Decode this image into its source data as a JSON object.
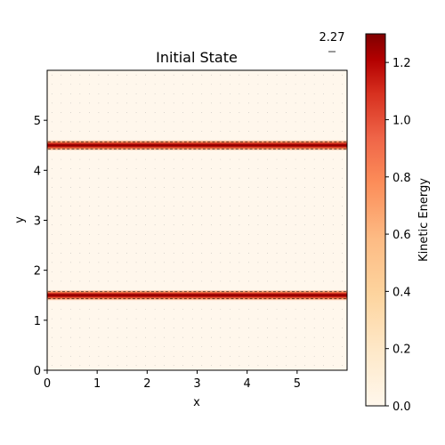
{
  "chart_data": {
    "type": "heatmap",
    "title": "Initial State",
    "xlabel": "x",
    "ylabel": "y",
    "xlim": [
      0,
      6
    ],
    "ylim": [
      0,
      6
    ],
    "xticks": [
      0,
      1,
      2,
      3,
      4,
      5
    ],
    "yticks": [
      0,
      1,
      2,
      3,
      4,
      5
    ],
    "colorbar": {
      "label": "Kinetic Energy",
      "colormap": "OrRd",
      "range": [
        0,
        1.3
      ],
      "ticks": [
        "0.0",
        "0.2",
        "0.4",
        "0.6",
        "0.8",
        "1.0",
        "1.2"
      ]
    },
    "bands": [
      {
        "y_center": 1.5,
        "peak_value": 1.3
      },
      {
        "y_center": 4.5,
        "peak_value": 1.3
      }
    ],
    "quiver_key": {
      "label": "2.27",
      "position": "top-right"
    },
    "grid": false,
    "colors": {
      "background_low": "#fff7ec",
      "mid": "#fc8d59",
      "high": "#b30000",
      "peak": "#7f0000"
    }
  }
}
